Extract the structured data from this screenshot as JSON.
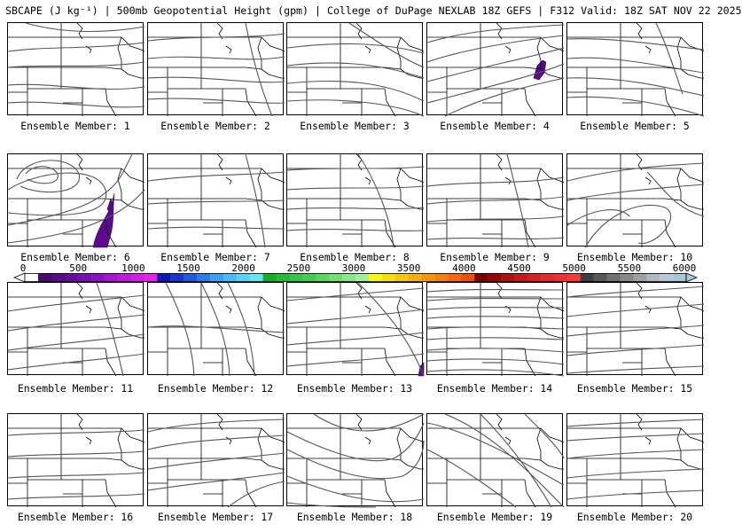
{
  "title": "SBCAPE (J kg⁻¹) | 500mb Geopotential Height (gpm) | College of DuPage NEXLAB 18Z GEFS | F312 Valid: 18Z SAT NOV 22 2025",
  "colorbar": {
    "tick_labels": [
      "0",
      "500",
      "1000",
      "1500",
      "2000",
      "2500",
      "3000",
      "3500",
      "4000",
      "4500",
      "5000",
      "5500",
      "6000"
    ],
    "colors": [
      "#ffffff",
      "#4a0a70",
      "#5a0a8a",
      "#6a0ba0",
      "#7c0cb8",
      "#9010c8",
      "#a814d8",
      "#c018e0",
      "#d81ce8",
      "#ea20f0",
      "#0a1ab8",
      "#1438d0",
      "#1e5ae0",
      "#2a7cee",
      "#3aa0f4",
      "#48bcf8",
      "#56d4f8",
      "#66e6f0",
      "#10b020",
      "#20c030",
      "#30c840",
      "#40d050",
      "#58d860",
      "#70e070",
      "#88e888",
      "#a0f0a0",
      "#f8f800",
      "#f8e000",
      "#f8c800",
      "#f8b000",
      "#f89800",
      "#f88000",
      "#f86800",
      "#f05000",
      "#800000",
      "#980808",
      "#b01010",
      "#c81818",
      "#d82020",
      "#e82828",
      "#f03030",
      "#f83838",
      "#404040",
      "#585858",
      "#707070",
      "#888888",
      "#a0a0a0",
      "#b0b8c0",
      "#b8c8d8",
      "#a8c8d8"
    ]
  },
  "members": [
    {
      "label": "Ensemble Member: 1"
    },
    {
      "label": "Ensemble Member: 2"
    },
    {
      "label": "Ensemble Member: 3"
    },
    {
      "label": "Ensemble Member: 4"
    },
    {
      "label": "Ensemble Member: 5"
    },
    {
      "label": "Ensemble Member: 6"
    },
    {
      "label": "Ensemble Member: 7"
    },
    {
      "label": "Ensemble Member: 8"
    },
    {
      "label": "Ensemble Member: 9"
    },
    {
      "label": "Ensemble Member: 10"
    },
    {
      "label": "Ensemble Member: 11"
    },
    {
      "label": "Ensemble Member: 12"
    },
    {
      "label": "Ensemble Member: 13"
    },
    {
      "label": "Ensemble Member: 14"
    },
    {
      "label": "Ensemble Member: 15"
    },
    {
      "label": "Ensemble Member: 16"
    },
    {
      "label": "Ensemble Member: 17"
    },
    {
      "label": "Ensemble Member: 18"
    },
    {
      "label": "Ensemble Member: 19"
    },
    {
      "label": "Ensemble Member: 20"
    }
  ],
  "colors": {
    "contour": "#555555",
    "borders": "#000000",
    "cape_shading": "#5a0a8a"
  }
}
